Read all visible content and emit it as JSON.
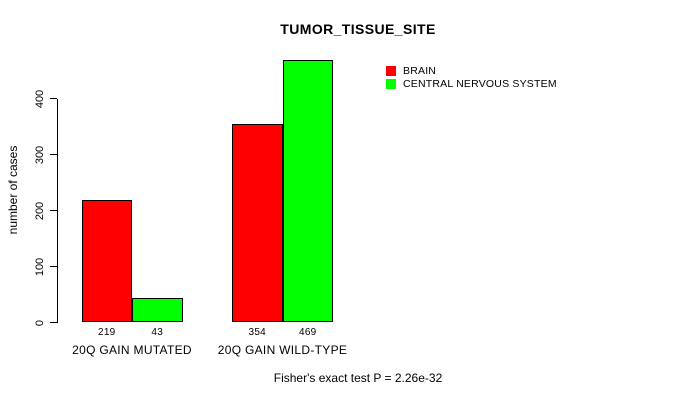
{
  "chart_data": {
    "type": "bar",
    "title": "TUMOR_TISSUE_SITE",
    "ylabel": "number of cases",
    "xlabel": "",
    "categories": [
      "20Q GAIN MUTATED",
      "20Q GAIN WILD-TYPE"
    ],
    "series": [
      {
        "name": "BRAIN",
        "color": "#ff0000",
        "values": [
          219,
          354
        ]
      },
      {
        "name": "CENTRAL NERVOUS SYSTEM",
        "color": "#00ff00",
        "values": [
          43,
          469
        ]
      }
    ],
    "bar_value_labels": [
      [
        219,
        43
      ],
      [
        354,
        469
      ]
    ],
    "yticks": [
      0,
      100,
      200,
      300,
      400
    ],
    "ylim": [
      0,
      475
    ],
    "grid": false,
    "legend_position": "top-right",
    "annotation": "Fisher's exact test P = 2.26e-32"
  }
}
